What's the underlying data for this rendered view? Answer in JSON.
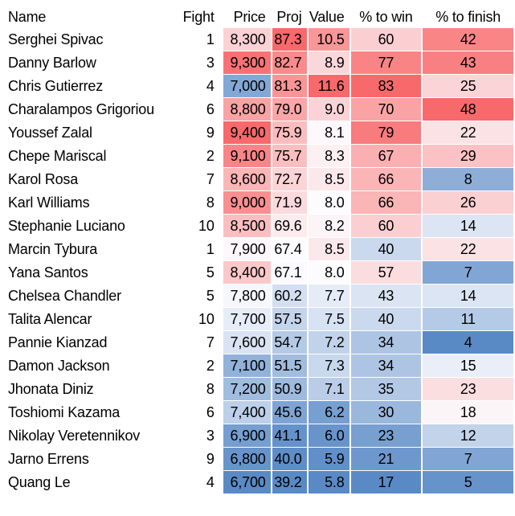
{
  "chart_data": {
    "type": "table",
    "columns": [
      {
        "key": "name",
        "label": "Name",
        "align": "left",
        "heat": false
      },
      {
        "key": "fight",
        "label": "Fight",
        "align": "right",
        "heat": false
      },
      {
        "key": "price",
        "label": "Price",
        "align": "right",
        "heat": true
      },
      {
        "key": "proj",
        "label": "Proj",
        "align": "right",
        "heat": true
      },
      {
        "key": "value",
        "label": "Value",
        "align": "right",
        "heat": true
      },
      {
        "key": "pct_to_win",
        "label": "% to win",
        "align": "center",
        "heat": true
      },
      {
        "key": "pct_to_finish",
        "label": "% to finish",
        "align": "center",
        "heat": true
      }
    ],
    "rows": [
      [
        "Serghei Spivac",
        "1",
        "8,300",
        "87.3",
        "10.5",
        "60",
        "42"
      ],
      [
        "Danny Barlow",
        "3",
        "9,300",
        "82.7",
        "8.9",
        "77",
        "43"
      ],
      [
        "Chris Gutierrez",
        "4",
        "7,000",
        "81.3",
        "11.6",
        "83",
        "25"
      ],
      [
        "Charalampos Grigoriou",
        "6",
        "8,800",
        "79.0",
        "9.0",
        "70",
        "48"
      ],
      [
        "Youssef Zalal",
        "9",
        "9,400",
        "75.9",
        "8.1",
        "79",
        "22"
      ],
      [
        "Chepe Mariscal",
        "2",
        "9,100",
        "75.7",
        "8.3",
        "67",
        "29"
      ],
      [
        "Karol Rosa",
        "7",
        "8,600",
        "72.7",
        "8.5",
        "66",
        "8"
      ],
      [
        "Karl Williams",
        "8",
        "9,000",
        "71.9",
        "8.0",
        "66",
        "26"
      ],
      [
        "Stephanie Luciano",
        "10",
        "8,500",
        "69.6",
        "8.2",
        "60",
        "14"
      ],
      [
        "Marcin Tybura",
        "1",
        "7,900",
        "67.4",
        "8.5",
        "40",
        "22"
      ],
      [
        "Yana Santos",
        "5",
        "8,400",
        "67.1",
        "8.0",
        "57",
        "7"
      ],
      [
        "Chelsea Chandler",
        "5",
        "7,800",
        "60.2",
        "7.7",
        "43",
        "14"
      ],
      [
        "Talita Alencar",
        "10",
        "7,700",
        "57.5",
        "7.5",
        "40",
        "11"
      ],
      [
        "Pannie Kianzad",
        "7",
        "7,600",
        "54.7",
        "7.2",
        "34",
        "4"
      ],
      [
        "Damon Jackson",
        "2",
        "7,100",
        "51.5",
        "7.3",
        "34",
        "15"
      ],
      [
        "Jhonata Diniz",
        "8",
        "7,200",
        "50.9",
        "7.1",
        "35",
        "23"
      ],
      [
        "Toshiomi Kazama",
        "6",
        "7,400",
        "45.6",
        "6.2",
        "30",
        "18"
      ],
      [
        "Nikolay Veretennikov",
        "3",
        "6,900",
        "41.1",
        "6.0",
        "23",
        "12"
      ],
      [
        "Jarno Errens",
        "9",
        "6,800",
        "40.0",
        "5.9",
        "21",
        "7"
      ],
      [
        "Quang Le",
        "4",
        "6,700",
        "39.2",
        "5.8",
        "17",
        "5"
      ]
    ],
    "heatmap": {
      "applies_to_columns": [
        "price",
        "proj",
        "value",
        "pct_to_win",
        "pct_to_finish"
      ],
      "low_color": "#5A8AC6",
      "mid_color": "#FCFCFF",
      "high_color": "#F8696B",
      "midpoint": "per-column median",
      "direction": "high values red, low values blue"
    }
  }
}
